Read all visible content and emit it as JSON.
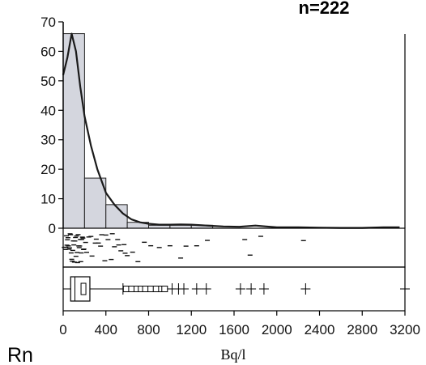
{
  "chart_data": {
    "type": "bar",
    "title": "",
    "sample_label": "n=222",
    "element_label": "Rn",
    "xlabel": "Bq/l",
    "ylabel": "",
    "xlim": [
      0,
      3200
    ],
    "ylim": [
      0,
      70
    ],
    "x_ticks": [
      "0",
      "400",
      "800",
      "1200",
      "1600",
      "2000",
      "2400",
      "2800",
      "3200"
    ],
    "y_ticks": [
      "0",
      "10",
      "20",
      "30",
      "40",
      "50",
      "60",
      "70"
    ],
    "bin_width": 200,
    "bins": [
      {
        "start": 0,
        "end": 200,
        "count": 66
      },
      {
        "start": 200,
        "end": 400,
        "count": 17
      },
      {
        "start": 400,
        "end": 600,
        "count": 8
      },
      {
        "start": 600,
        "end": 800,
        "count": 2
      },
      {
        "start": 800,
        "end": 1000,
        "count": 1
      },
      {
        "start": 1000,
        "end": 1200,
        "count": 1
      },
      {
        "start": 1200,
        "end": 1400,
        "count": 1
      },
      {
        "start": 1400,
        "end": 1600,
        "count": 0
      },
      {
        "start": 1600,
        "end": 1800,
        "count": 0
      },
      {
        "start": 1800,
        "end": 2000,
        "count": 0
      },
      {
        "start": 2000,
        "end": 2200,
        "count": 0
      },
      {
        "start": 2200,
        "end": 2400,
        "count": 0
      },
      {
        "start": 2400,
        "end": 2600,
        "count": 0
      },
      {
        "start": 2600,
        "end": 2800,
        "count": 0
      },
      {
        "start": 2800,
        "end": 3000,
        "count": 0
      },
      {
        "start": 3000,
        "end": 3200,
        "count": 0
      }
    ],
    "density_curve": [
      {
        "x": 0,
        "y": 52
      },
      {
        "x": 40,
        "y": 58
      },
      {
        "x": 80,
        "y": 66
      },
      {
        "x": 120,
        "y": 60
      },
      {
        "x": 160,
        "y": 48
      },
      {
        "x": 200,
        "y": 38
      },
      {
        "x": 260,
        "y": 28
      },
      {
        "x": 320,
        "y": 20
      },
      {
        "x": 400,
        "y": 12
      },
      {
        "x": 480,
        "y": 8
      },
      {
        "x": 560,
        "y": 5
      },
      {
        "x": 640,
        "y": 3
      },
      {
        "x": 720,
        "y": 2
      },
      {
        "x": 800,
        "y": 1.5
      },
      {
        "x": 900,
        "y": 1.2
      },
      {
        "x": 1000,
        "y": 1.2
      },
      {
        "x": 1100,
        "y": 1.3
      },
      {
        "x": 1200,
        "y": 1.2
      },
      {
        "x": 1300,
        "y": 1.0
      },
      {
        "x": 1400,
        "y": 0.8
      },
      {
        "x": 1500,
        "y": 0.6
      },
      {
        "x": 1650,
        "y": 0.5
      },
      {
        "x": 1800,
        "y": 0.9
      },
      {
        "x": 1900,
        "y": 0.6
      },
      {
        "x": 2000,
        "y": 0.3
      },
      {
        "x": 2200,
        "y": 0.3
      },
      {
        "x": 2400,
        "y": 0.2
      },
      {
        "x": 2600,
        "y": 0.1
      },
      {
        "x": 2800,
        "y": 0.1
      },
      {
        "x": 3000,
        "y": 0.3
      },
      {
        "x": 3150,
        "y": 0.3
      }
    ],
    "strip_samples": [
      10,
      20,
      30,
      40,
      50,
      60,
      70,
      80,
      90,
      100,
      110,
      120,
      130,
      140,
      150,
      160,
      170,
      180,
      190,
      25,
      45,
      65,
      85,
      105,
      125,
      145,
      165,
      185,
      35,
      55,
      75,
      95,
      115,
      135,
      155,
      175,
      195,
      210,
      240,
      270,
      300,
      330,
      360,
      390,
      420,
      450,
      480,
      510,
      540,
      570,
      600,
      220,
      260,
      310,
      350,
      400,
      460,
      520,
      580,
      650,
      700,
      760,
      820,
      900,
      1000,
      1100,
      1150,
      1250,
      1350,
      1700,
      1750,
      1850,
      2250
    ],
    "boxplot": {
      "q1": 70,
      "median": 110,
      "q3": 250,
      "mean": 190,
      "whisker_low": 0,
      "whisker_high": 560,
      "outliers": [
        590,
        640,
        690,
        730,
        770,
        820,
        870,
        920,
        950
      ],
      "far_outliers": [
        1020,
        1080,
        1130,
        1250,
        1340,
        1660,
        1760,
        1880,
        2270,
        3200
      ]
    }
  }
}
